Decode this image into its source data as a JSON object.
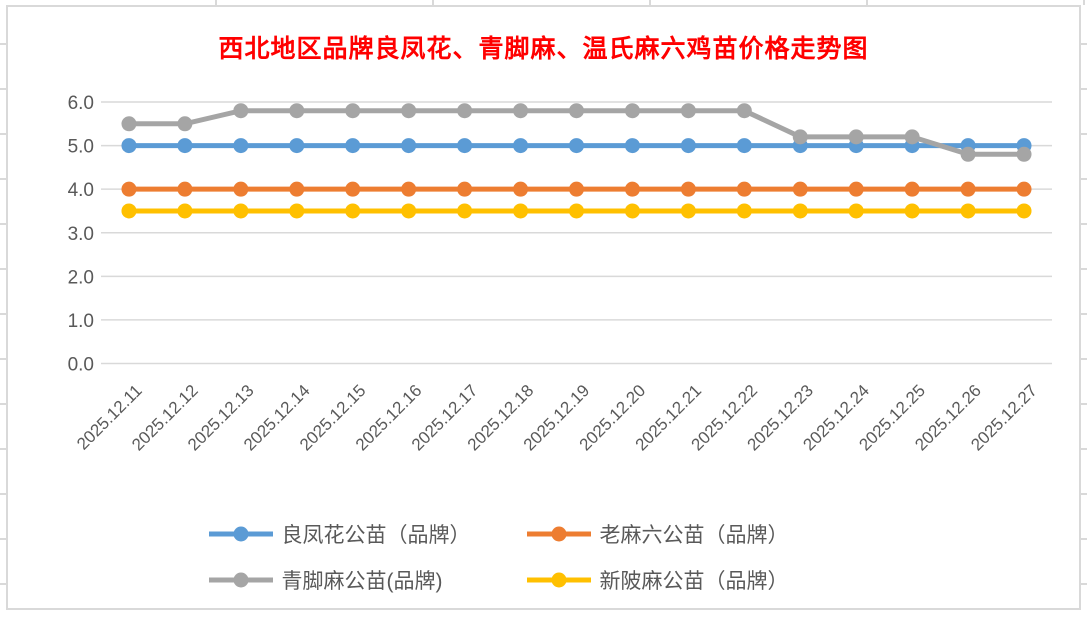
{
  "chart": {
    "title": "西北地区品牌良凤花、青脚麻、温氏麻六鸡苗价格走势图",
    "title_color": "#FF0000",
    "axis_label_color": "#595959",
    "gridline_color": "#D9D9D9",
    "frame_border_color": "#D9D9D9",
    "background": "#FFFFFF"
  },
  "chart_data": {
    "type": "line",
    "title": "西北地区品牌良凤花、青脚麻、温氏麻六鸡苗价格走势图",
    "xlabel": "",
    "ylabel": "",
    "ylim": [
      0,
      6
    ],
    "ytick_step": 1.0,
    "ytick_labels": [
      "0.0",
      "1.0",
      "2.0",
      "3.0",
      "4.0",
      "5.0",
      "6.0"
    ],
    "grid": "horizontal",
    "legend_position": "bottom",
    "x_label_rotation_deg": -45,
    "categories": [
      "2025.12.11",
      "2025.12.12",
      "2025.12.13",
      "2025.12.14",
      "2025.12.15",
      "2025.12.16",
      "2025.12.17",
      "2025.12.18",
      "2025.12.19",
      "2025.12.20",
      "2025.12.21",
      "2025.12.22",
      "2025.12.23",
      "2025.12.24",
      "2025.12.25",
      "2025.12.26",
      "2025.12.27"
    ],
    "series": [
      {
        "name": "良凤花公苗（品牌）",
        "color": "#5B9BD5",
        "values": [
          5.0,
          5.0,
          5.0,
          5.0,
          5.0,
          5.0,
          5.0,
          5.0,
          5.0,
          5.0,
          5.0,
          5.0,
          5.0,
          5.0,
          5.0,
          5.0,
          5.0
        ]
      },
      {
        "name": "老麻六公苗（品牌）",
        "color": "#ED7D31",
        "values": [
          4.0,
          4.0,
          4.0,
          4.0,
          4.0,
          4.0,
          4.0,
          4.0,
          4.0,
          4.0,
          4.0,
          4.0,
          4.0,
          4.0,
          4.0,
          4.0,
          4.0
        ]
      },
      {
        "name": "青脚麻公苗(品牌)",
        "color": "#A5A5A5",
        "values": [
          5.5,
          5.5,
          5.8,
          5.8,
          5.8,
          5.8,
          5.8,
          5.8,
          5.8,
          5.8,
          5.8,
          5.8,
          5.2,
          5.2,
          5.2,
          4.8,
          4.8
        ]
      },
      {
        "name": "新陂麻公苗（品牌）",
        "color": "#FFC000",
        "values": [
          3.5,
          3.5,
          3.5,
          3.5,
          3.5,
          3.5,
          3.5,
          3.5,
          3.5,
          3.5,
          3.5,
          3.5,
          3.5,
          3.5,
          3.5,
          3.5,
          3.5
        ]
      }
    ]
  }
}
